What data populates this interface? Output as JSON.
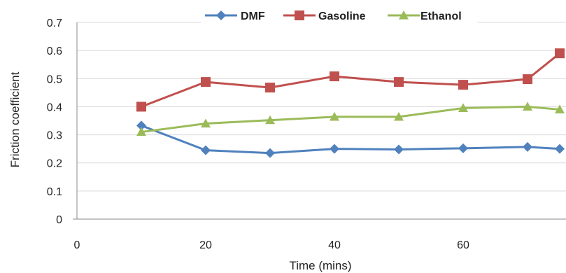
{
  "chart_data": {
    "type": "line",
    "title": "",
    "xlabel": "Time (mins)",
    "ylabel": "Friction coefficient",
    "xlim": [
      0,
      75
    ],
    "ylim": [
      0,
      0.7
    ],
    "xticks": [
      0,
      20,
      40,
      60
    ],
    "xtick_labels": [
      "0",
      "20",
      "40",
      "60"
    ],
    "yticks": [
      0,
      0.1,
      0.2,
      0.3,
      0.4,
      0.5,
      0.6,
      0.7
    ],
    "ytick_labels": [
      "0",
      "0.1",
      "0.2",
      "0.3",
      "0.4",
      "0.5",
      "0.6",
      "0.7"
    ],
    "grid": "horizontal",
    "legend_position": "top",
    "x": [
      10,
      20,
      30,
      40,
      50,
      60,
      70,
      75
    ],
    "series": [
      {
        "name": "DMF",
        "color": "#4F81BD",
        "marker": "diamond",
        "values": [
          0.333,
          0.245,
          0.235,
          0.25,
          0.248,
          0.252,
          0.257,
          0.25
        ]
      },
      {
        "name": "Gasoline",
        "color": "#C0504D",
        "marker": "square",
        "values": [
          0.4,
          0.488,
          0.468,
          0.508,
          0.488,
          0.478,
          0.498,
          0.59
        ]
      },
      {
        "name": "Ethanol",
        "color": "#9BBB59",
        "marker": "triangle",
        "values": [
          0.31,
          0.34,
          0.352,
          0.364,
          0.364,
          0.395,
          0.4,
          0.39
        ]
      }
    ]
  }
}
